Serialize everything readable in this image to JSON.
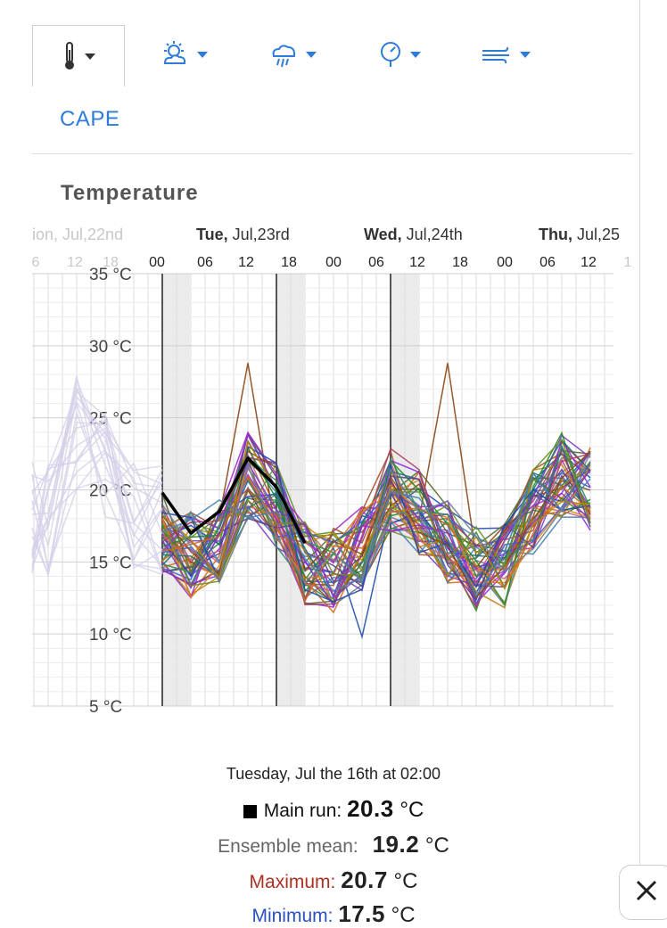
{
  "tabs": [
    {
      "icon": "thermometer-icon",
      "active": true
    },
    {
      "icon": "sun-cloud-icon",
      "active": false
    },
    {
      "icon": "rain-cloud-icon",
      "active": false
    },
    {
      "icon": "pressure-gauge-icon",
      "active": false
    },
    {
      "icon": "wind-icon",
      "active": false
    }
  ],
  "cape_link": "CAPE",
  "section_title": "Temperature",
  "colors": {
    "accent": "#2f7bd8",
    "main_run": "#000000",
    "maximum": "#c0392b",
    "minimum": "#2a52be"
  },
  "chart_data": {
    "type": "line",
    "days": [
      {
        "weekday": "Mon,",
        "date": " Jul,22nd",
        "shown": "ion, Jul,22nd",
        "faded": true
      },
      {
        "weekday": "Tue,",
        "date": " Jul,23rd",
        "faded": false
      },
      {
        "weekday": "Wed,",
        "date": " Jul,24th",
        "faded": false
      },
      {
        "weekday": "Thu,",
        "date": " Jul,25",
        "faded": false
      }
    ],
    "hour_ticks": [
      "6",
      "12",
      "18",
      "00",
      "06",
      "12",
      "18",
      "00",
      "06",
      "12",
      "18",
      "00",
      "06",
      "12",
      "1"
    ],
    "hour_ticks_faded": [
      true,
      true,
      true,
      false,
      false,
      false,
      false,
      false,
      false,
      false,
      false,
      false,
      false,
      false,
      true
    ],
    "y_ticks": [
      "35 °C",
      "30 °C",
      "25 °C",
      "20 °C",
      "15 °C",
      "10 °C",
      "5 °C"
    ],
    "ylim": [
      5,
      35
    ],
    "ylabel": "°C",
    "main_run": {
      "name": "Main run",
      "x_hours": [
        0,
        6,
        12,
        18,
        24,
        30,
        36
      ],
      "values": [
        19.8,
        17.0,
        18.5,
        22.2,
        20.2,
        16.3,
        null
      ]
    },
    "ensemble_note": "about 50 ensemble members spanning roughly 10-29 °C, plotted as colored lines"
  },
  "info": {
    "date": "Tuesday, Jul the 16th at 02:00",
    "main_run_label": "Main run: ",
    "main_run_value": "20.3",
    "ensemble_label": "Ensemble mean: ",
    "ensemble_value": "19.2",
    "max_label": "Maximum: ",
    "max_value": "20.7",
    "min_label": "Minimum: ",
    "min_value": "17.5",
    "unit": " °C"
  }
}
